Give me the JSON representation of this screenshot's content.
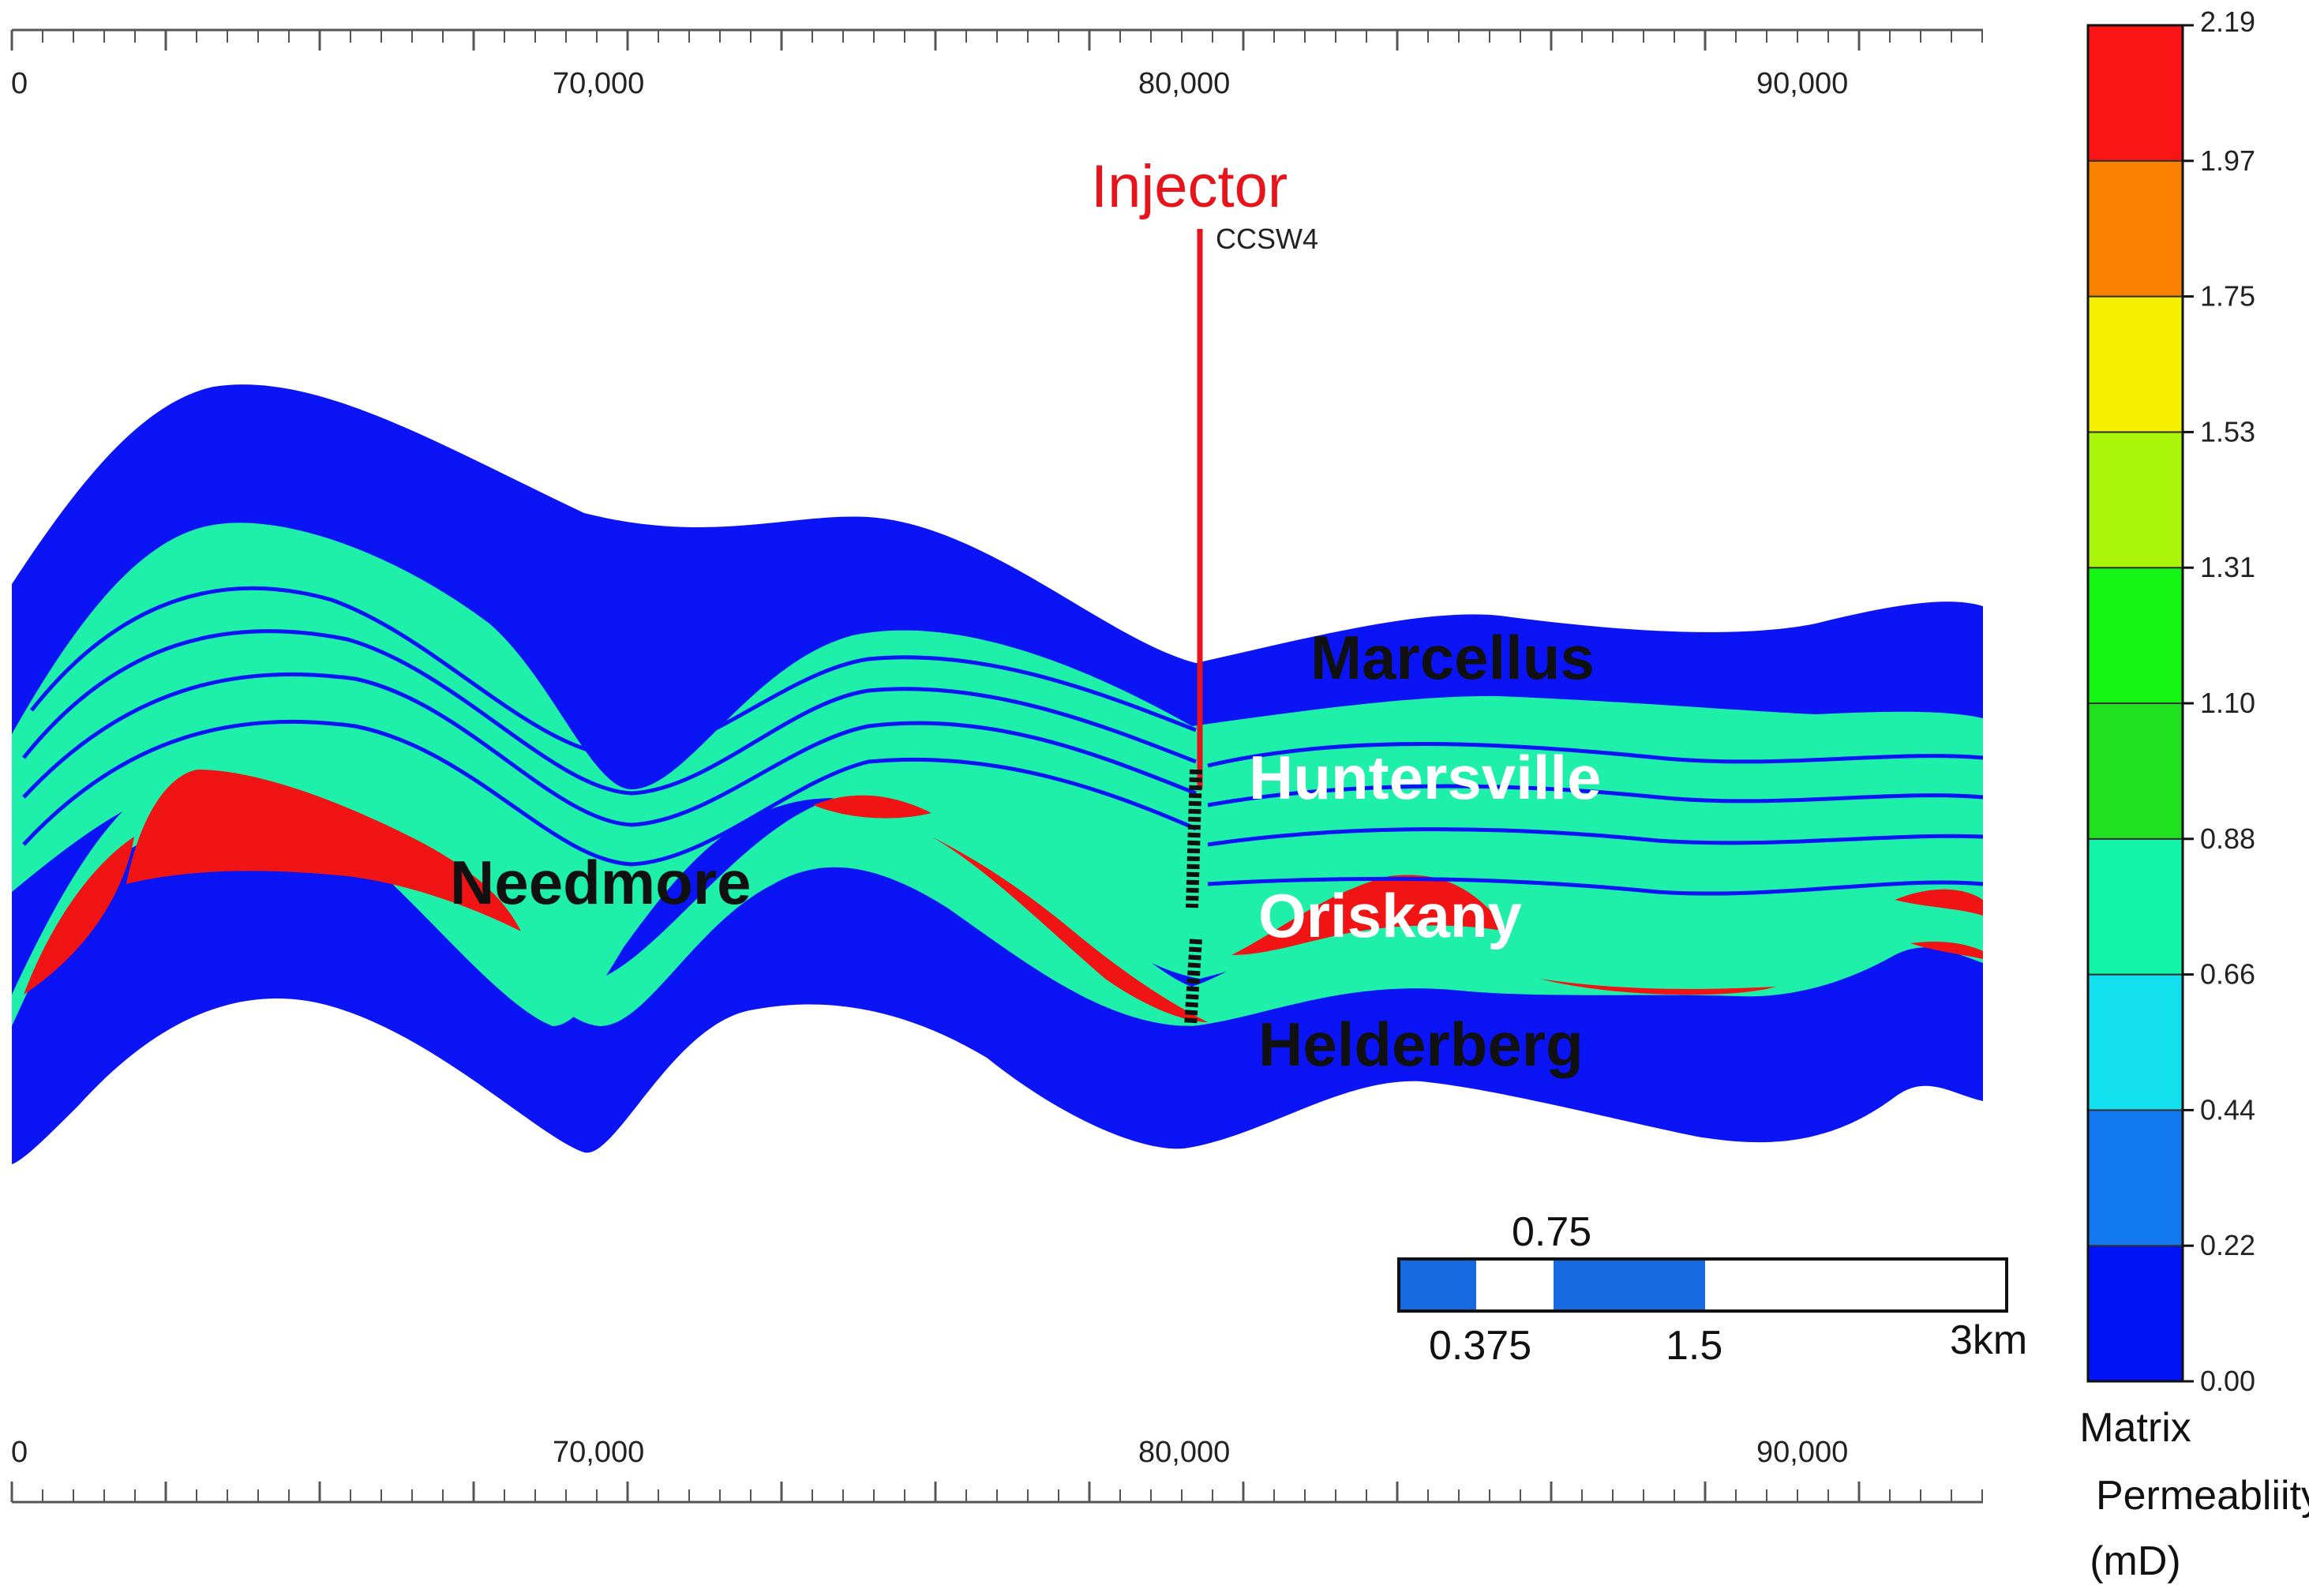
{
  "section": {
    "x_axis_ticks": [
      "0",
      "70,000",
      "80,000",
      "90,000"
    ],
    "formations": [
      "Marcellus",
      "Huntersville",
      "Needmore",
      "Oriskany",
      "Helderberg"
    ],
    "well": {
      "label": "Injector",
      "name": "CCSW4",
      "color": "#e8141c"
    }
  },
  "scale_bar": {
    "labels": [
      "0.75",
      "0.375",
      "1.5",
      "3km"
    ],
    "fill_color": "#1769e0"
  },
  "colorbar": {
    "title_lines": [
      "Matrix",
      "Permeabliity",
      "(mD)"
    ],
    "ticks": [
      "2.19",
      "1.97",
      "1.75",
      "1.53",
      "1.31",
      "1.10",
      "0.88",
      "0.66",
      "0.44",
      "0.22",
      "0.00"
    ],
    "colors": [
      "#0013f5",
      "#1278f0",
      "#12e0ee",
      "#12f5a8",
      "#20e020",
      "#14f514",
      "#aaf50a",
      "#f5f000",
      "#fa8200",
      "#fa1414"
    ]
  },
  "colors": {
    "helderberg_marcellus": "#0a14f5",
    "huntersville": "#1ef0aa",
    "oriskany_high": "#f01414",
    "axis": "#555555"
  }
}
